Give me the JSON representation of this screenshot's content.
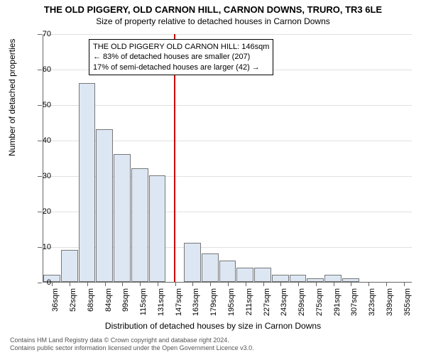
{
  "chart": {
    "type": "histogram",
    "title_main": "THE OLD PIGGERY, OLD CARNON HILL, CARNON DOWNS, TRURO, TR3 6LE",
    "title_sub": "Size of property relative to detached houses in Carnon Downs",
    "ylabel": "Number of detached properties",
    "xlabel": "Distribution of detached houses by size in Carnon Downs",
    "bar_fill": "#dde7f4",
    "bar_border": "#777777",
    "grid_color": "#e0e0e0",
    "background_color": "#ffffff",
    "marker_line_color": "#cc0000",
    "ylim": [
      0,
      70
    ],
    "ytick_step": 10,
    "x_labels": [
      "36sqm",
      "52sqm",
      "68sqm",
      "84sqm",
      "99sqm",
      "115sqm",
      "131sqm",
      "147sqm",
      "163sqm",
      "179sqm",
      "195sqm",
      "211sqm",
      "227sqm",
      "243sqm",
      "259sqm",
      "275sqm",
      "291sqm",
      "307sqm",
      "323sqm",
      "339sqm",
      "355sqm"
    ],
    "values": [
      2,
      9,
      56,
      43,
      36,
      32,
      30,
      0,
      11,
      8,
      6,
      4,
      4,
      2,
      2,
      1,
      2,
      1,
      0,
      0,
      0
    ],
    "marker_bin_index": 7,
    "annotation": {
      "line1": "THE OLD PIGGERY OLD CARNON HILL: 146sqm",
      "line2": "← 83% of detached houses are smaller (207)",
      "line3": "17% of semi-detached houses are larger (42) →"
    },
    "title_main_fontsize": 13,
    "title_sub_fontsize": 12,
    "label_fontsize": 12,
    "tick_fontsize": 11,
    "anno_fontsize": 11
  },
  "footer": {
    "line1": "Contains HM Land Registry data © Crown copyright and database right 2024.",
    "line2": "Contains public sector information licensed under the Open Government Licence v3.0."
  }
}
